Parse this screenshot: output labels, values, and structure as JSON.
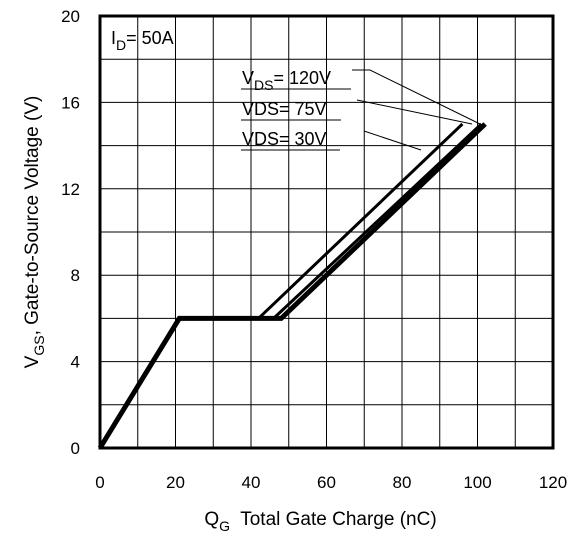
{
  "chart_data": {
    "type": "line",
    "title": "",
    "annotation": {
      "main": "I",
      "sub": "D",
      "rest": "= 50A"
    },
    "xlabel": {
      "main": "Q",
      "sub": "G",
      "rest": "  Total Gate Charge (nC)"
    },
    "ylabel": {
      "main": "V",
      "sub": "GS",
      "rest": ", Gate-to-Source Voltage (V)"
    },
    "xlim": [
      0,
      120
    ],
    "ylim": [
      0,
      20
    ],
    "xticks": [
      "0",
      "20",
      "40",
      "60",
      "80",
      "100",
      "120"
    ],
    "yticks": [
      "0",
      "4",
      "8",
      "12",
      "16",
      "20"
    ],
    "grid": true,
    "series": [
      {
        "label": {
          "main": "V",
          "sub": "DS",
          "rest": "= 120V"
        },
        "x": [
          0,
          21,
          48,
          102
        ],
        "y": [
          0,
          6,
          6,
          15
        ]
      },
      {
        "label": {
          "main": "VDS= 75V",
          "sub": "",
          "rest": ""
        },
        "x": [
          0,
          21,
          46,
          101
        ],
        "y": [
          0,
          6,
          6,
          15
        ]
      },
      {
        "label": {
          "main": "VDS= 30V",
          "sub": "",
          "rest": ""
        },
        "x": [
          0,
          21,
          42,
          96
        ],
        "y": [
          0,
          6,
          6,
          15
        ]
      }
    ]
  }
}
